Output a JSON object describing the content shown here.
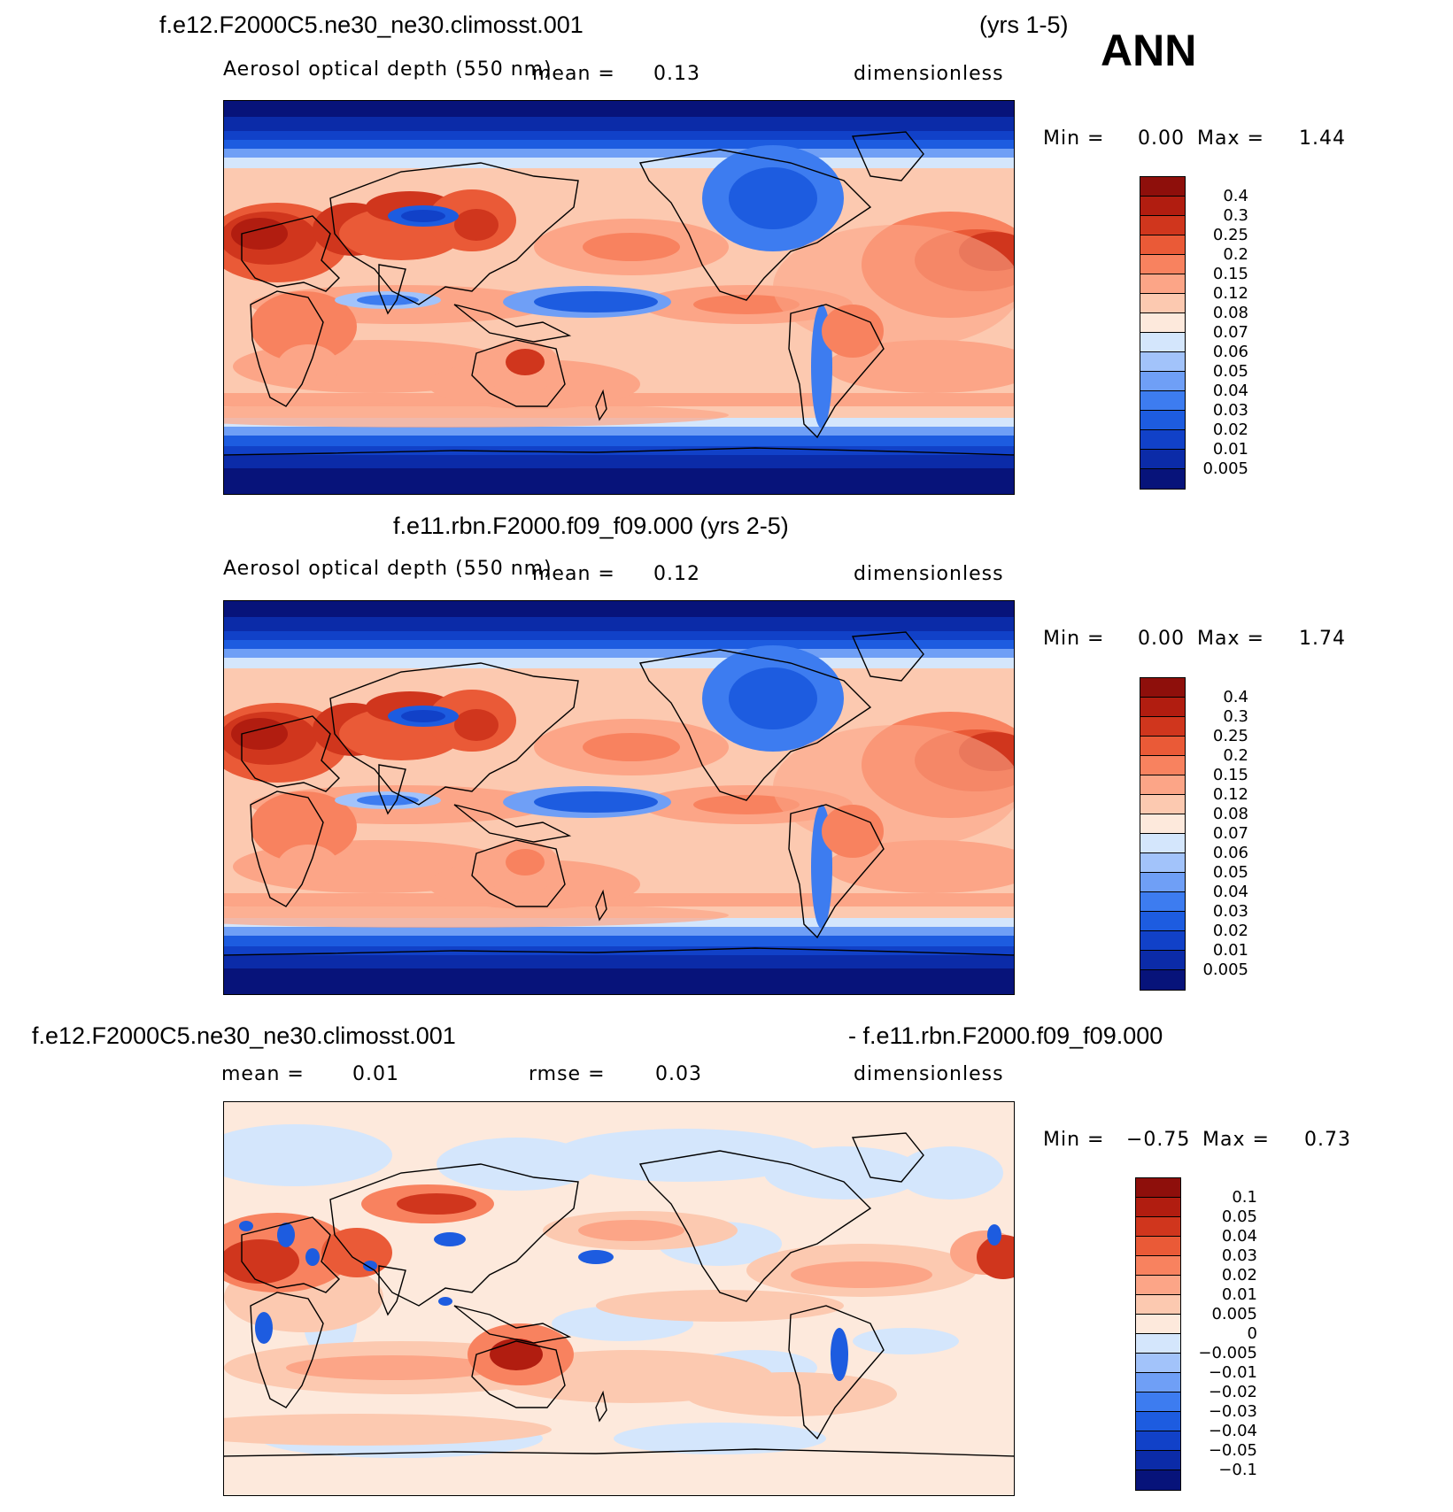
{
  "annual_label": "ANN",
  "colors": {
    "abs": [
      "#07137a",
      "#0b2ba8",
      "#1141c8",
      "#1d5ce0",
      "#3d7cf0",
      "#6f9ff6",
      "#a2c3fa",
      "#d4e6fc",
      "#fde9dc",
      "#fcc9b0",
      "#fca587",
      "#f8825f",
      "#ea5a37",
      "#d0361d",
      "#b11d10",
      "#8e0f0b"
    ],
    "diff": [
      "#07137a",
      "#0b2ba8",
      "#1141c8",
      "#1d5ce0",
      "#3d7cf0",
      "#6f9ff6",
      "#a2c3fa",
      "#d4e6fc",
      "#fde9dc",
      "#fcc9b0",
      "#fca587",
      "#f8825f",
      "#ea5a37",
      "#d0361d",
      "#b11d10",
      "#8e0f0b"
    ],
    "coast": "#000000"
  },
  "panels": [
    {
      "case_title": "f.e12.F2000C5.ne30_ne30.climosst.001",
      "years": "(yrs 1-5)",
      "variable": "Aerosol optical depth (550 nm)",
      "mean_label": "mean =",
      "mean_value": "0.13",
      "units": "dimensionless",
      "min_label": "Min =",
      "min_value": "0.00",
      "max_label": "Max =",
      "max_value": "1.44",
      "levels": [
        "0.4",
        "0.3",
        "0.25",
        "0.2",
        "0.15",
        "0.12",
        "0.08",
        "0.07",
        "0.06",
        "0.05",
        "0.04",
        "0.03",
        "0.02",
        "0.01",
        "0.005"
      ]
    },
    {
      "case_title": "f.e11.rbn.F2000.f09_f09.000 (yrs 2-5)",
      "variable": "Aerosol optical depth (550 nm)",
      "mean_label": "mean =",
      "mean_value": "0.12",
      "units": "dimensionless",
      "min_label": "Min =",
      "min_value": "0.00",
      "max_label": "Max =",
      "max_value": "1.74",
      "levels": [
        "0.4",
        "0.3",
        "0.25",
        "0.2",
        "0.15",
        "0.12",
        "0.08",
        "0.07",
        "0.06",
        "0.05",
        "0.04",
        "0.03",
        "0.02",
        "0.01",
        "0.005"
      ]
    },
    {
      "case_title_left": "f.e12.F2000C5.ne30_ne30.climosst.001",
      "case_title_right": "- f.e11.rbn.F2000.f09_f09.000",
      "mean_label": "mean =",
      "mean_value": "0.01",
      "rmse_label": "rmse =",
      "rmse_value": "0.03",
      "units": "dimensionless",
      "min_label": "Min =",
      "min_value": "−0.75",
      "max_label": "Max =",
      "max_value": "0.73",
      "levels": [
        "0.1",
        "0.05",
        "0.04",
        "0.03",
        "0.02",
        "0.01",
        "0.005",
        "0",
        "−0.005",
        "−0.01",
        "−0.02",
        "−0.03",
        "−0.04",
        "−0.05",
        "−0.1"
      ]
    }
  ]
}
